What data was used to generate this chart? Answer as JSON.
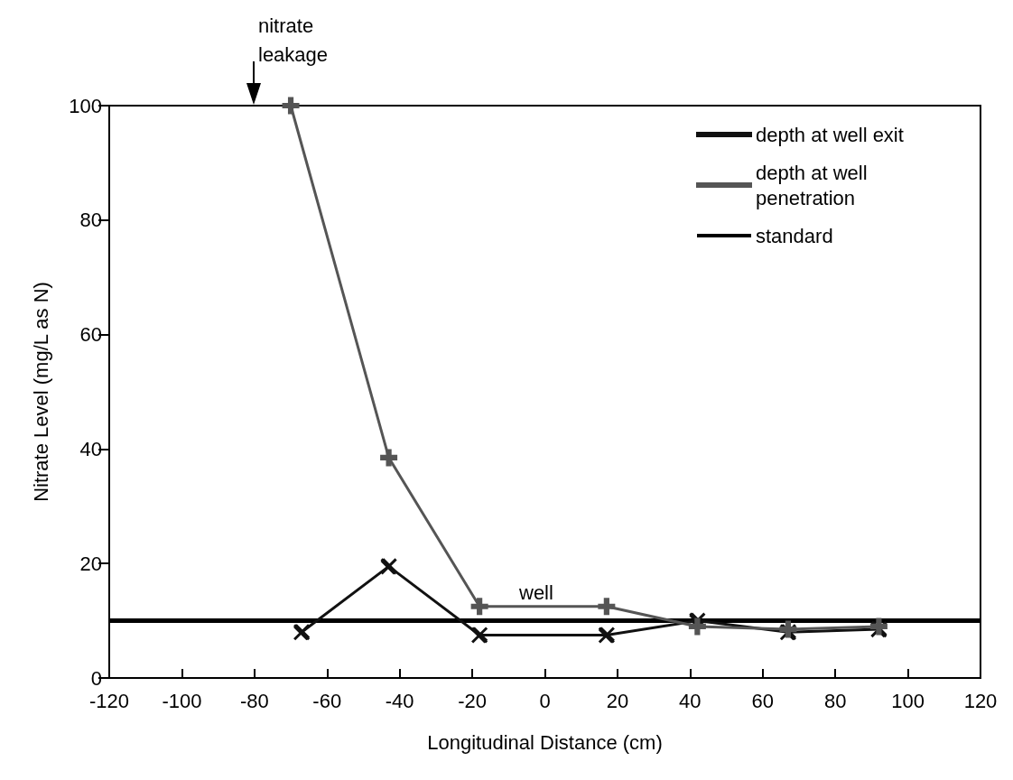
{
  "chart_data": {
    "type": "line",
    "xlabel": "Longitudinal Distance (cm)",
    "ylabel": "Nitrate Level (mg/L as N)",
    "xlim": [
      -120,
      120
    ],
    "xticks": [
      -120,
      -100,
      -80,
      -60,
      -40,
      -20,
      0,
      20,
      40,
      60,
      80,
      100,
      120
    ],
    "ylim": [
      0,
      100
    ],
    "yticks": [
      0,
      20,
      40,
      60,
      80,
      100
    ],
    "grid": false,
    "legend": "top right",
    "line_style": "solid",
    "series": [
      {
        "name": "depth at well exit",
        "color": "#111111",
        "marker": "cross",
        "x": [
          -67,
          -43,
          -18,
          17,
          42,
          67,
          92
        ],
        "values": [
          8,
          19.5,
          7.5,
          7.5,
          10,
          8,
          8.5
        ]
      },
      {
        "name": "depth at well penetration",
        "color": "#555555",
        "marker": "plus",
        "x": [
          -70,
          -43,
          -18,
          17,
          42,
          67,
          92
        ],
        "values": [
          100,
          38.5,
          12.5,
          12.5,
          9,
          8.5,
          9
        ]
      }
    ],
    "ref_lines": [
      {
        "axis": "y",
        "value": 10,
        "label": "standard",
        "color": "#000000"
      }
    ],
    "annotations": [
      "nitrate\nleakage",
      "well"
    ]
  }
}
